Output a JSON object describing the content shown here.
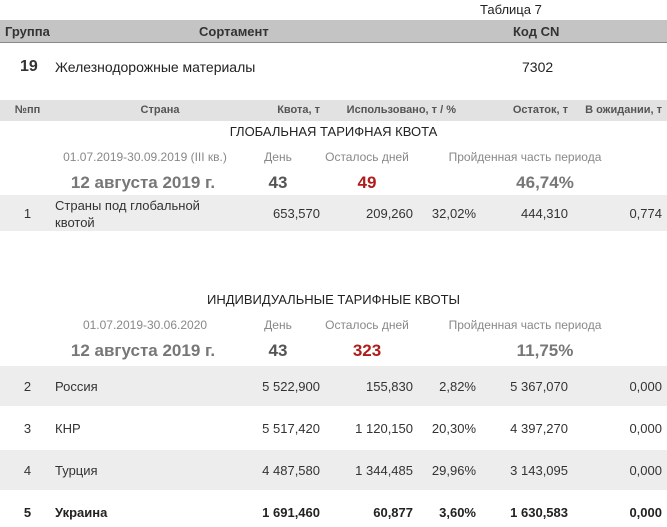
{
  "caption": "Таблица 7",
  "header": {
    "group": "Группа",
    "assortment": "Сортамент",
    "cn_code": "Код CN"
  },
  "product": {
    "group": "19",
    "name": "Железнодорожные материалы",
    "cn_code": "7302"
  },
  "columns": [
    "№пп",
    "Страна",
    "Квота, т",
    "Использовано, т / %",
    "Остаток, т",
    "В ожидании, т"
  ],
  "sections": [
    {
      "title": "ГЛОБАЛЬНАЯ ТАРИФНАЯ КВОТА",
      "period": "01.07.2019-30.09.2019 (III кв.)",
      "day_label": "День",
      "days_left_label": "Осталось дней",
      "passed_label": "Пройденная часть периода",
      "date": "12 августа 2019 г.",
      "day": "43",
      "days_left": "49",
      "passed": "46,74%",
      "rows": [
        [
          "1",
          "Страны под глобальной\nквотой",
          "653,570",
          "209,260",
          "32,02%",
          "444,310",
          "0,774"
        ]
      ]
    },
    {
      "title": "ИНДИВИДУАЛЬНЫЕ ТАРИФНЫЕ КВОТЫ",
      "period": "01.07.2019-30.06.2020",
      "day_label": "День",
      "days_left_label": "Осталось дней",
      "passed_label": "Пройденная часть периода",
      "date": "12 августа 2019 г.",
      "day": "43",
      "days_left": "323",
      "passed": "11,75%",
      "rows": [
        [
          "2",
          "Россия",
          "5 522,900",
          "155,830",
          "2,82%",
          "5 367,070",
          "0,000"
        ],
        [
          "3",
          "КНР",
          "5 517,420",
          "1 120,150",
          "20,30%",
          "4 397,270",
          "0,000"
        ],
        [
          "4",
          "Турция",
          "4 487,580",
          "1 344,485",
          "29,96%",
          "3 143,095",
          "0,000"
        ],
        [
          "5",
          "Украина",
          "1 691,460",
          "60,877",
          "3,60%",
          "1 630,583",
          "0,000"
        ]
      ]
    }
  ]
}
